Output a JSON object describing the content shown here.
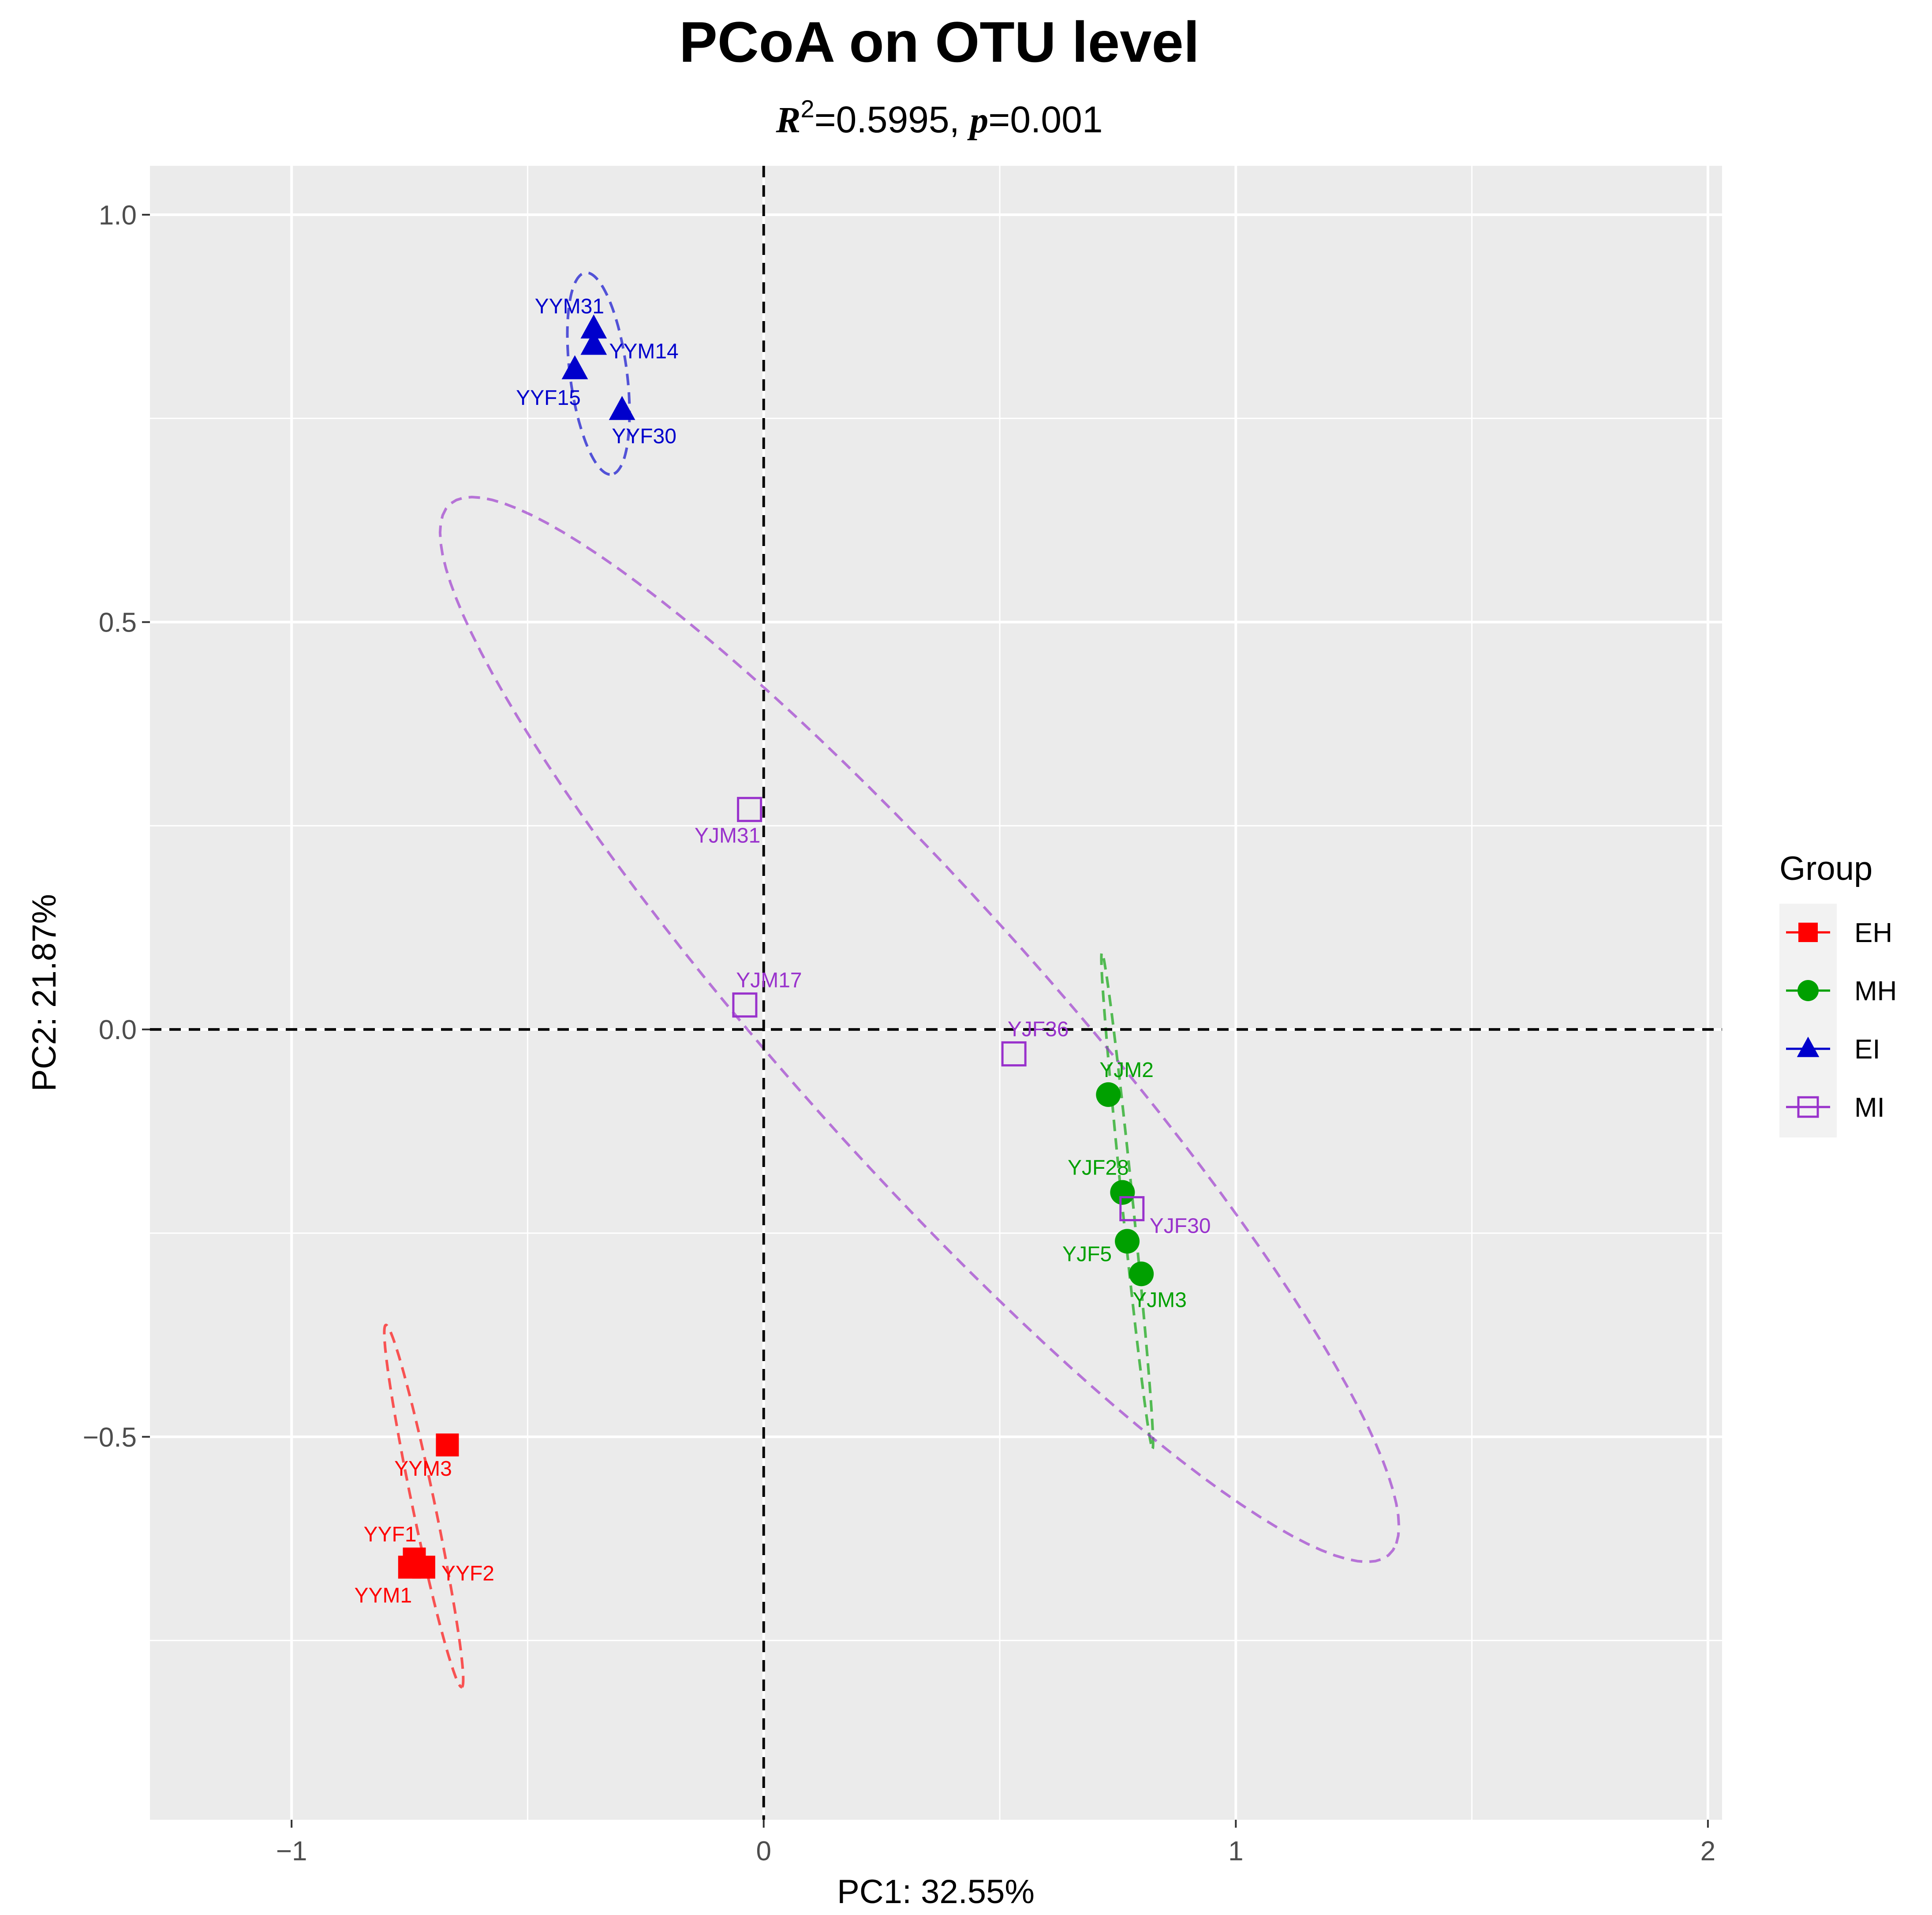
{
  "chart_data": {
    "type": "scatter",
    "title": "PCoA on OTU level",
    "subtitle": {
      "r_symbol": "R",
      "r_power": "2",
      "r_value": "=0.5995, ",
      "p_symbol": "p",
      "p_value": "=0.001"
    },
    "xlabel": "PC1: 32.55%",
    "ylabel": "PC2: 21.87%",
    "xlim": [
      -1.3,
      2.03
    ],
    "ylim": [
      -0.97,
      1.06
    ],
    "x_ticks": [
      -1,
      0,
      1,
      2
    ],
    "x_tick_labels": [
      "−1",
      "0",
      "1",
      "2"
    ],
    "y_ticks": [
      1.0,
      0.5,
      0.0,
      -0.5
    ],
    "y_tick_labels": [
      "1.0",
      "0.5",
      "0.0",
      "−0.5"
    ],
    "grid": true,
    "legend": {
      "title": "Group",
      "position": "right"
    },
    "reference_lines": {
      "x": 0,
      "y": 0
    },
    "series": [
      {
        "name": "EH",
        "color": "#ff0000",
        "marker": "filled-square",
        "points": [
          {
            "label": "YYM3",
            "x": -0.67,
            "y": -0.51
          },
          {
            "label": "YYF1",
            "x": -0.74,
            "y": -0.65
          },
          {
            "label": "YYF2",
            "x": -0.72,
            "y": -0.66
          },
          {
            "label": "YYM1",
            "x": -0.75,
            "y": -0.66
          }
        ],
        "ellipse": {
          "cx": -0.72,
          "cy": -0.585,
          "rx": 0.52,
          "ry": 0.05,
          "angle_deg": -70
        }
      },
      {
        "name": "MH",
        "color": "#00a000",
        "marker": "filled-circle",
        "points": [
          {
            "label": "YJM2",
            "x": 0.73,
            "y": -0.08
          },
          {
            "label": "YJF28",
            "x": 0.76,
            "y": -0.2
          },
          {
            "label": "YJF5",
            "x": 0.77,
            "y": -0.26
          },
          {
            "label": "YJM3",
            "x": 0.8,
            "y": -0.3
          }
        ],
        "ellipse": {
          "cx": 0.77,
          "cy": -0.21,
          "rx": 0.68,
          "ry": 0.025,
          "angle_deg": -80
        }
      },
      {
        "name": "EI",
        "color": "#0000cc",
        "marker": "filled-triangle",
        "points": [
          {
            "label": "YYM31",
            "x": -0.36,
            "y": 0.86
          },
          {
            "label": "YYM14",
            "x": -0.36,
            "y": 0.84
          },
          {
            "label": "YYF15",
            "x": -0.4,
            "y": 0.81
          },
          {
            "label": "YYF30",
            "x": -0.3,
            "y": 0.76
          }
        ],
        "ellipse": {
          "cx": -0.35,
          "cy": 0.805,
          "rx": 0.28,
          "ry": 0.13,
          "angle_deg": -75
        }
      },
      {
        "name": "MI",
        "color": "#9932cc",
        "marker": "open-square",
        "points": [
          {
            "label": "YJM31",
            "x": -0.03,
            "y": 0.27
          },
          {
            "label": "YJM17",
            "x": -0.04,
            "y": 0.03
          },
          {
            "label": "YJF36",
            "x": 0.53,
            "y": -0.03
          },
          {
            "label": "YJF30",
            "x": 0.78,
            "y": -0.22
          }
        ],
        "ellipse": {
          "cx": 0.33,
          "cy": 0.0,
          "rx": 2.62,
          "ry": 0.44,
          "angle_deg": -32
        }
      }
    ]
  }
}
